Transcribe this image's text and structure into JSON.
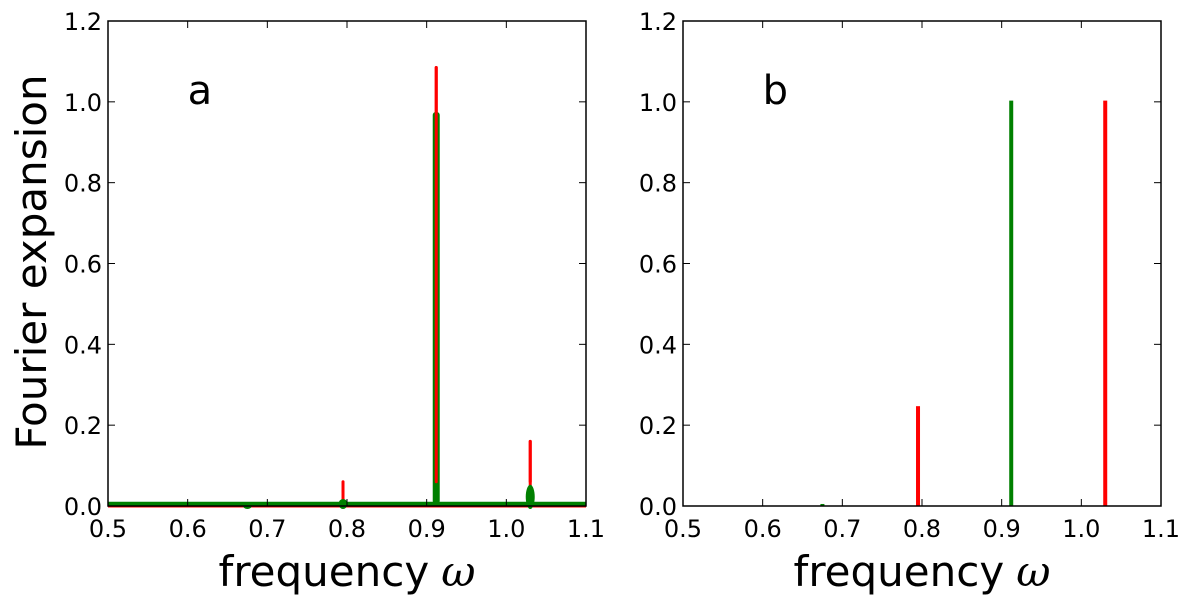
{
  "ylabel": "Fourier expansion",
  "chart_data": [
    {
      "type": "line",
      "panel_label": "a",
      "xlabel": "frequency",
      "xlabel_symbol": "ω",
      "ylabel": "Fourier expansion",
      "xlim": [
        0.5,
        1.1
      ],
      "ylim": [
        0.0,
        1.2
      ],
      "xticks": [
        "0.5",
        "0.6",
        "0.7",
        "0.8",
        "0.9",
        "1.0",
        "1.1"
      ],
      "yticks": [
        "0.0",
        "0.2",
        "0.4",
        "0.6",
        "0.8",
        "1.0",
        "1.2"
      ],
      "grid": false,
      "series": [
        {
          "color": "#ff0000",
          "baseline": 0.0,
          "peaks": [
            {
              "x": 0.795,
              "y": 0.037
            },
            {
              "x": 0.912,
              "y": 1.085
            },
            {
              "x": 1.03,
              "y": 0.16
            }
          ]
        },
        {
          "color": "#008000",
          "baseline": 0.005,
          "peaks": [
            {
              "x": 0.675,
              "y": 0.007
            },
            {
              "x": 0.795,
              "y": 0.015
            },
            {
              "x": 0.912,
              "y": 0.975
            },
            {
              "x": 1.03,
              "y": 0.05
            }
          ]
        }
      ]
    },
    {
      "type": "bar",
      "panel_label": "b",
      "xlabel": "frequency",
      "xlabel_symbol": "ω",
      "ylabel": "",
      "xlim": [
        0.5,
        1.1
      ],
      "ylim": [
        0.0,
        1.2
      ],
      "xticks": [
        "0.5",
        "0.6",
        "0.7",
        "0.8",
        "0.9",
        "1.0",
        "1.1"
      ],
      "yticks": [
        "0.0",
        "0.2",
        "0.4",
        "0.6",
        "0.8",
        "1.0",
        "1.2"
      ],
      "grid": false,
      "series": [
        {
          "color": "#008000",
          "bars": [
            {
              "x": 0.675,
              "y": 0.005
            },
            {
              "x": 0.912,
              "y": 1.003
            }
          ]
        },
        {
          "color": "#ff0000",
          "bars": [
            {
              "x": 0.795,
              "y": 0.247
            },
            {
              "x": 1.03,
              "y": 1.003
            }
          ]
        }
      ]
    }
  ]
}
